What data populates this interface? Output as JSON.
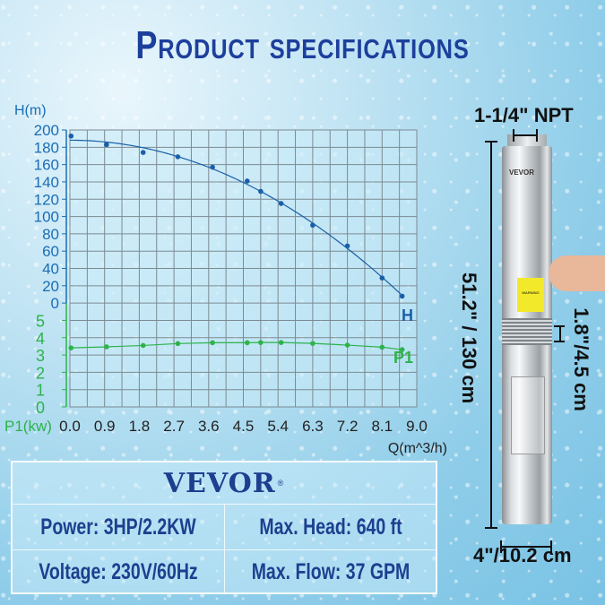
{
  "title": "Product specifications",
  "chart_data": {
    "type": "line",
    "xlabel": "Q(m^3/h)",
    "xlim": [
      0,
      9
    ],
    "x_ticks": [
      "0.0",
      "0.9",
      "1.8",
      "2.7",
      "3.6",
      "4.5",
      "5.4",
      "6.3",
      "7.2",
      "8.1",
      "9.0"
    ],
    "grid": true,
    "y_axes": [
      {
        "label": "H(m)",
        "range": [
          0,
          200
        ],
        "ticks": [
          "200",
          "180",
          "160",
          "140",
          "120",
          "100",
          "80",
          "60",
          "40",
          "20",
          "0"
        ],
        "color": "#1a6db5"
      },
      {
        "label": "P1(kw)",
        "range": [
          0,
          6
        ],
        "ticks": [
          "5",
          "4",
          "3",
          "2",
          "1",
          "0"
        ],
        "color": "#2db34a"
      }
    ],
    "series": [
      {
        "name": "H",
        "axis": "H(m)",
        "color": "#1a5fa8",
        "x": [
          0.03,
          0.95,
          1.9,
          2.8,
          3.7,
          4.6,
          4.95,
          5.48,
          6.3,
          7.2,
          8.1,
          8.62
        ],
        "y": [
          193,
          183,
          174,
          169,
          157,
          141,
          129,
          115,
          90,
          66,
          29,
          8
        ]
      },
      {
        "name": "P1",
        "axis": "P1(kw)",
        "color": "#2db34a",
        "x": [
          0.03,
          0.95,
          1.9,
          2.8,
          3.7,
          4.6,
          4.95,
          5.48,
          6.3,
          7.2,
          8.1,
          8.62
        ],
        "y": [
          3.41,
          3.47,
          3.55,
          3.66,
          3.71,
          3.71,
          3.72,
          3.72,
          3.67,
          3.57,
          3.45,
          3.31
        ]
      }
    ]
  },
  "specs": {
    "brand": "VEVOR",
    "registered": "®",
    "power": "Power: 3HP/2.2KW",
    "max_head": "Max. Head: 640 ft",
    "voltage": "Voltage: 230V/60Hz",
    "max_flow": "Max. Flow: 37 GPM"
  },
  "dimensions": {
    "outlet": "1-1/4\" NPT",
    "length": "51.2\" / 130 cm",
    "inlet_height": "1.8\"/4.5 cm",
    "diameter": "4\"/10.2 cm"
  },
  "pump_labels": {
    "brand": "VEVOR",
    "warning": "WARNING"
  }
}
